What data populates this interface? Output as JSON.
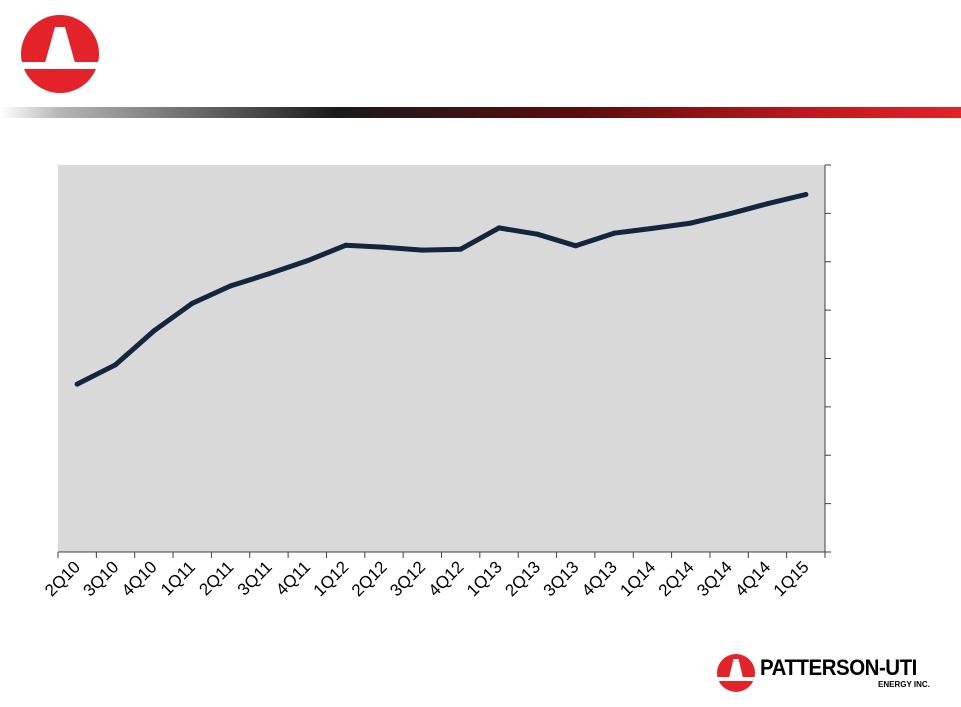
{
  "colors": {
    "brand_red": "#e32229",
    "plot_background": "#d9d9d9",
    "line": "#13263e",
    "axis": "#404040",
    "text": "#000000"
  },
  "logo": {
    "company_name": "PATTERSON-UTI",
    "company_subtitle": "ENERGY INC."
  },
  "chart_data": {
    "type": "line",
    "title": "",
    "xlabel": "",
    "ylabel": "",
    "grid": false,
    "legend": "none",
    "y_tick_count": 9,
    "categories": [
      "2Q10",
      "3Q10",
      "4Q10",
      "1Q11",
      "2Q11",
      "3Q11",
      "4Q11",
      "1Q12",
      "2Q12",
      "3Q12",
      "4Q12",
      "1Q13",
      "2Q13",
      "3Q13",
      "4Q13",
      "1Q14",
      "2Q14",
      "3Q14",
      "4Q14",
      "1Q15"
    ],
    "series": [
      {
        "values": [
          3.47,
          3.87,
          4.57,
          5.14,
          5.5,
          5.75,
          6.02,
          6.34,
          6.3,
          6.24,
          6.26,
          6.7,
          6.57,
          6.33,
          6.59,
          6.69,
          6.8,
          6.99,
          7.2,
          7.39
        ]
      }
    ],
    "ylim": [
      0,
      8
    ]
  }
}
